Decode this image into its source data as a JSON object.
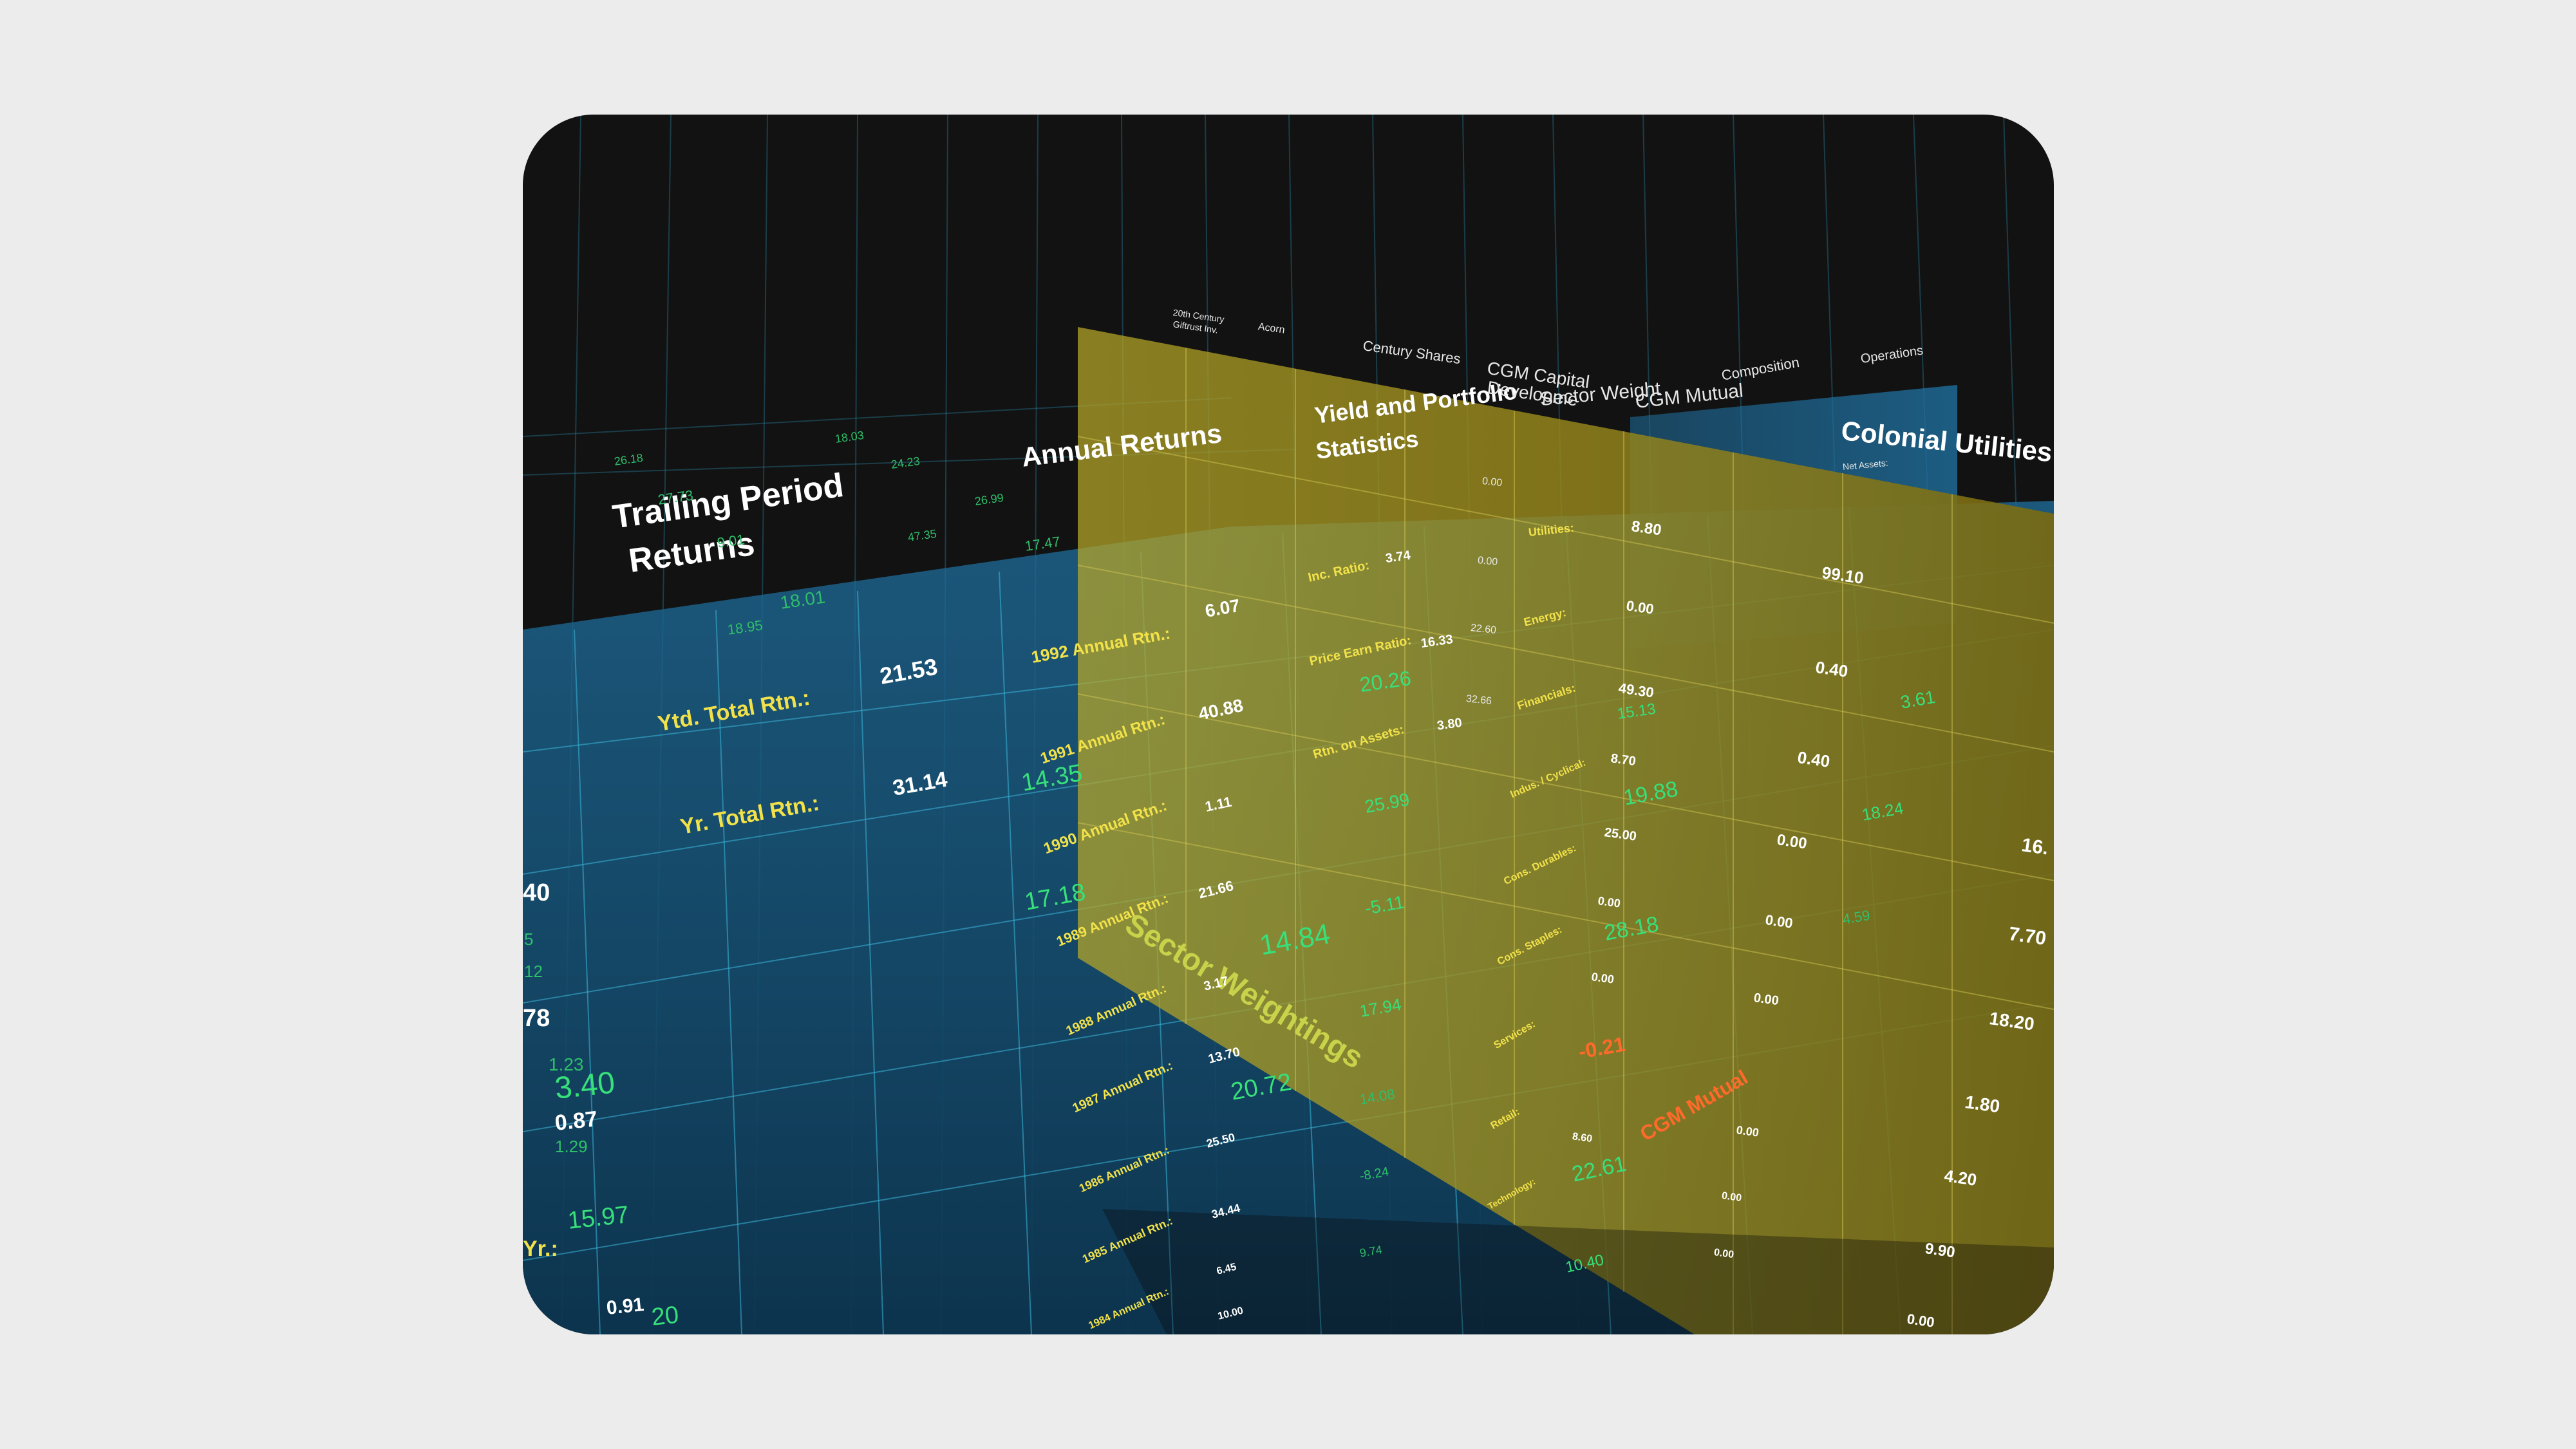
{
  "scene": {
    "panel_titles": {
      "trailing_1": "Trailing Period",
      "trailing_2": "Returns",
      "annual": "Annual Returns",
      "yield_1": "Yield and Portfolio",
      "yield_2": "Statistics",
      "colonial": "Colonial Utilities",
      "sector": "Sector Weightings",
      "cgm_mutual_diag": "CGM Mutual"
    },
    "fund_headers": {
      "century_a": "20th Century",
      "century_b": "Giftrust Inv.",
      "acorn": "Acorn",
      "century_shares": "Century Shares",
      "cgm_capital_1": "CGM Capital",
      "cgm_capital_2": "Developme",
      "sector_weight": "Sector Weight",
      "cgm_mutual": "CGM Mutual",
      "composition": "Composition",
      "operations": "Operations",
      "net_assets": "Net Assets:"
    },
    "trailing": {
      "ytd_label": "Ytd. Total Rtn.:",
      "ytd_value": "21.53",
      "yr_label": "Yr. Total Rtn.:",
      "yr_value": "31.14",
      "yr_green": "14.35",
      "g1": "18.01",
      "g2": "18.95",
      "g3": "9.01",
      "g4": "27.73",
      "g5": "26.18",
      "g6": "18.03",
      "g7": "24.23",
      "g8": "26.99",
      "g9": "47.35",
      "g10": "17.47",
      "g11": "17.18",
      "g12": "5.5"
    },
    "annual": {
      "r1992_label": "1992 Annual Rtn.:",
      "r1992_value": "6.07",
      "r1991_label": "1991 Annual Rtn.:",
      "r1991_value": "40.88",
      "r1990_label": "1990 Annual Rtn.:",
      "r1990_value": "1.11",
      "r1989_label": "1989 Annual Rtn.:",
      "r1989_value": "21.66",
      "r1988_label": "1988 Annual Rtn.:",
      "r1988_value": "3.17",
      "r1987_label": "1987 Annual Rtn.:",
      "r1987_value": "13.70",
      "r1987_green": "20.72",
      "r1986_label": "1986 Annual Rtn.:",
      "r1986_value": "25.50",
      "r1985_label": "1985 Annual Rtn.:",
      "r1985_value": "34.44",
      "r1984_label": "1984 Annual Rtn.:",
      "r1984_value": "6.45",
      "r1983_value": "10.00"
    },
    "yield": {
      "inc_label": "Inc. Ratio:",
      "inc_value": "3.74",
      "pe_label": "Price Earn Ratio:",
      "pe_value": "16.33",
      "pe_green": "20.26",
      "rtn_label": "Rtn. on Assets:",
      "rtn_value": "3.80",
      "g1": "25.99",
      "g2": "-5.11",
      "g3": "17.94",
      "g4": "14.08",
      "g5": "-8.24",
      "g6": "9.74",
      "g7": "14.84",
      "w1": "0.00",
      "w2": "0.00",
      "w3": "22.60",
      "w4": "32.66"
    },
    "sector": {
      "utilities": "Utilities:",
      "energy": "Energy:",
      "financials": "Financials:",
      "industrial": "Indus. / Cyclical:",
      "cons_dur": "Cons. Durables:",
      "cons_staples": "Cons. Staples:",
      "services": "Services:",
      "retail": "Retail:",
      "technology": "Technology:",
      "v_util": "8.80",
      "v_energy": "0.00",
      "v_fin": "49.30",
      "v_fin_green": "15.13",
      "v_ind": "8.70",
      "v_ind_green": "19.88",
      "v_dur": "25.00",
      "v_sta": "0.00",
      "v_sta_green": "28.18",
      "v_ser": "0.00",
      "v_ret": "-0.21",
      "v_tec": "8.60",
      "v_tec_green": "22.61",
      "v_last": "10.40"
    },
    "colonial": {
      "v1": "99.10",
      "v2": "0.40",
      "v3": "0.40",
      "v4": "0.00",
      "v5": "0.00",
      "v6": "0.00",
      "v7": "0.00",
      "v8": "0.00",
      "v9": "0.00",
      "v10": "16.",
      "v11": "7.70",
      "v12": "18.20",
      "v13": "1.80",
      "v14": "4.20",
      "v15": "9.90",
      "v16": "0.00",
      "g1": "3.61",
      "g2": "18.24",
      "g3": "4.59"
    },
    "left_edge": {
      "v40": "40",
      "v5": "5",
      "v12": "12",
      "v78": "78",
      "v123": "1.23",
      "v340": "3.40",
      "v087": "0.87",
      "v129": "1.29",
      "yr_lbl": "Yr.:",
      "v1597": "15.97",
      "v091": "0.91",
      "v20": "20"
    },
    "colors": {
      "background": "#121212",
      "blue_panel": "#1e6e9c",
      "yellow_panel": "#a89a1c",
      "grid_line": "#3ab6d8",
      "label_yellow": "#f2e24a",
      "value_green": "#37e07a",
      "accent_orange": "#ff6a2a"
    }
  }
}
